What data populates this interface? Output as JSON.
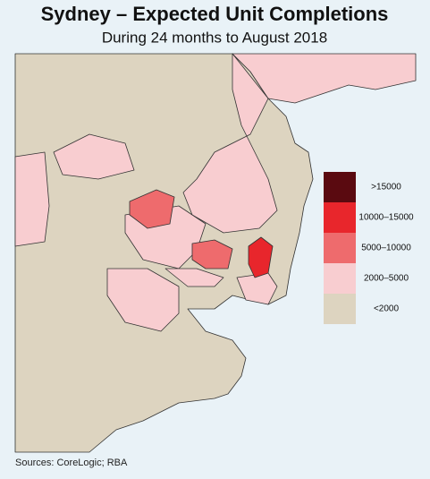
{
  "title": "Sydney – Expected Unit Completions",
  "subtitle": "During 24 months to August 2018",
  "legend": [
    {
      "label": ">15000",
      "color": "#5a0a10"
    },
    {
      "label": "10000–15000",
      "color": "#e8262c"
    },
    {
      "label": "5000–10000",
      "color": "#ee6b6d"
    },
    {
      "label": "2000–5000",
      "color": "#f8cdd0"
    },
    {
      "label": "<2000",
      "color": "#ddd4c0"
    }
  ],
  "source": "Sources: CoreLogic; RBA"
}
